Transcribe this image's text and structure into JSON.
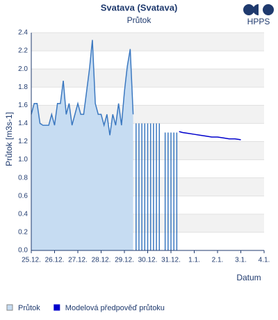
{
  "chart_data": {
    "type": "line",
    "title": "Svatava (Svatava)",
    "subtitle": "Průtok",
    "brand": "HPPS",
    "y_label": "Průtok [m3s-1]",
    "x_label": "Datum",
    "xlim": [
      0,
      10
    ],
    "xticks": [
      {
        "value": 0,
        "label": "25.12."
      },
      {
        "value": 1,
        "label": "26.12."
      },
      {
        "value": 2,
        "label": "27.12."
      },
      {
        "value": 3,
        "label": "28.12."
      },
      {
        "value": 4,
        "label": "29.12."
      },
      {
        "value": 5,
        "label": "30.12."
      },
      {
        "value": 6,
        "label": "31.12."
      },
      {
        "value": 7,
        "label": "1.1."
      },
      {
        "value": 8,
        "label": "2.1."
      },
      {
        "value": 9,
        "label": "3.1."
      },
      {
        "value": 10,
        "label": "4.1."
      }
    ],
    "ylim": [
      0,
      2.4
    ],
    "yticks": [
      {
        "value": 0,
        "label": "0.0"
      },
      0.2,
      0.4,
      0.6,
      0.8,
      {
        "value": 1,
        "label": "1.0"
      },
      1.2,
      1.4,
      1.6,
      1.8,
      {
        "value": 2,
        "label": "2.0"
      },
      2.2,
      2.4
    ],
    "grid": true,
    "series": [
      {
        "name": "Průtok",
        "color": "#3b78c0",
        "fill": "#c6dcf2",
        "x": [
          0,
          0.125,
          0.25,
          0.375,
          0.5,
          0.625,
          0.75,
          0.875,
          1.0,
          1.125,
          1.25,
          1.375,
          1.5,
          1.625,
          1.75,
          1.875,
          2.0,
          2.125,
          2.25,
          2.375,
          2.5,
          2.625,
          2.75,
          2.875,
          3.0,
          3.125,
          3.25,
          3.375,
          3.5,
          3.625,
          3.75,
          3.875,
          4.0,
          4.125,
          4.25,
          4.375,
          4.4375,
          4.5,
          4.5625,
          4.625,
          4.6875,
          4.75,
          4.8125,
          4.875,
          4.9375,
          5.0,
          5.0625,
          5.125,
          5.1875,
          5.25,
          5.3125,
          5.375,
          5.4375,
          5.5,
          5.625,
          5.75,
          5.8125,
          5.875,
          5.9375,
          6.0,
          6.0625,
          6.125,
          6.1875,
          6.25
        ],
        "values": [
          1.5,
          1.62,
          1.62,
          1.4,
          1.38,
          1.38,
          1.38,
          1.5,
          1.38,
          1.62,
          1.62,
          1.87,
          1.5,
          1.62,
          1.38,
          1.5,
          1.62,
          1.5,
          1.5,
          1.75,
          2.0,
          2.32,
          1.62,
          1.5,
          1.5,
          1.38,
          1.5,
          1.27,
          1.5,
          1.38,
          1.62,
          1.38,
          1.75,
          2.03,
          2.22,
          1.5,
          null,
          1.4,
          null,
          1.4,
          null,
          1.4,
          null,
          1.4,
          null,
          1.4,
          null,
          1.4,
          null,
          1.4,
          null,
          1.4,
          null,
          1.4,
          null,
          1.3,
          null,
          1.3,
          null,
          1.3,
          null,
          1.3,
          null,
          1.3
        ]
      },
      {
        "name": "Modelová předpověď průtoku",
        "color": "#0000cc",
        "x": [
          6.35,
          6.5,
          6.75,
          7.0,
          7.25,
          7.5,
          7.75,
          8.0,
          8.25,
          8.5,
          8.75,
          9.0
        ],
        "values": [
          1.31,
          1.3,
          1.29,
          1.28,
          1.27,
          1.26,
          1.25,
          1.25,
          1.24,
          1.23,
          1.23,
          1.22
        ]
      }
    ]
  }
}
